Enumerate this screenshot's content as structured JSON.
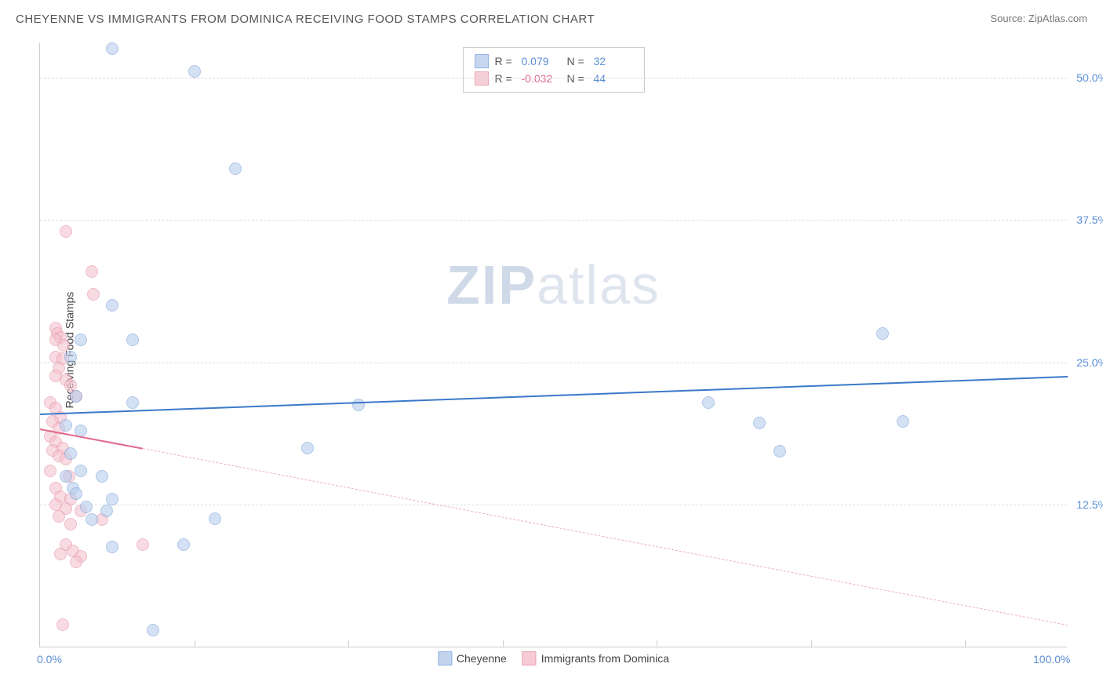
{
  "title": "CHEYENNE VS IMMIGRANTS FROM DOMINICA RECEIVING FOOD STAMPS CORRELATION CHART",
  "source_label": "Source:",
  "source_name": "ZipAtlas.com",
  "y_axis_title": "Receiving Food Stamps",
  "watermark_bold": "ZIP",
  "watermark_rest": "atlas",
  "chart": {
    "type": "scatter",
    "background_color": "#ffffff",
    "grid_color": "#dddddd",
    "axis_color": "#cccccc",
    "xlim": [
      0,
      100
    ],
    "ylim": [
      0,
      53
    ],
    "x_ticks": [
      0,
      100
    ],
    "x_tick_labels": [
      "0.0%",
      "100.0%"
    ],
    "x_minor_ticks": [
      15,
      30,
      45,
      60,
      75,
      90
    ],
    "y_ticks": [
      12.5,
      25,
      37.5,
      50
    ],
    "y_tick_labels": [
      "12.5%",
      "25.0%",
      "37.5%",
      "50.0%"
    ],
    "marker_radius": 8,
    "marker_stroke_width": 1.5,
    "series": [
      {
        "name": "Cheyenne",
        "label": "Cheyenne",
        "fill_color": "#b8cdec",
        "stroke_color": "#7aa3db",
        "fill_opacity": 0.6,
        "R_label": "R =",
        "R_value": "0.079",
        "R_color": "#5b8fd6",
        "N_label": "N =",
        "N_value": "32",
        "N_color": "#5b8fd6",
        "trend": {
          "x1": 0,
          "y1": 20.5,
          "x2": 100,
          "y2": 23.8,
          "color": "#3b78c9",
          "width": 2.5,
          "dash": "solid"
        },
        "points": [
          [
            7,
            52.5
          ],
          [
            15,
            50.5
          ],
          [
            19,
            42
          ],
          [
            7,
            30
          ],
          [
            4,
            27
          ],
          [
            9,
            27
          ],
          [
            3,
            25.5
          ],
          [
            3.2,
            14
          ],
          [
            3.5,
            22
          ],
          [
            9,
            21.5
          ],
          [
            31,
            21.3
          ],
          [
            65,
            21.5
          ],
          [
            70,
            19.7
          ],
          [
            84,
            19.8
          ],
          [
            72,
            17.2
          ],
          [
            26,
            17.5
          ],
          [
            4,
            15.5
          ],
          [
            6,
            15
          ],
          [
            3.5,
            13.5
          ],
          [
            7,
            13
          ],
          [
            6.5,
            12
          ],
          [
            17,
            11.3
          ],
          [
            7,
            8.8
          ],
          [
            14,
            9
          ],
          [
            11,
            1.5
          ],
          [
            82,
            27.5
          ],
          [
            2.5,
            19.5
          ],
          [
            4,
            19
          ],
          [
            4.5,
            12.3
          ],
          [
            5,
            11.2
          ],
          [
            2.5,
            15
          ],
          [
            3,
            17
          ]
        ]
      },
      {
        "name": "Immigrants from Dominica",
        "label": "Immigrants from Dominica",
        "fill_color": "#f5c2cf",
        "stroke_color": "#e392a8",
        "fill_opacity": 0.6,
        "R_label": "R =",
        "R_value": "-0.032",
        "R_color": "#e06a8a",
        "N_label": "N =",
        "N_value": "44",
        "N_color": "#5b8fd6",
        "trend_solid": {
          "x1": 0,
          "y1": 19.2,
          "x2": 10,
          "y2": 17.5,
          "color": "#e06a8a",
          "width": 2,
          "dash": "solid"
        },
        "trend_dashed": {
          "x1": 10,
          "y1": 17.5,
          "x2": 100,
          "y2": 2,
          "color": "#f0aebd",
          "width": 1,
          "dash": "dashed"
        },
        "points": [
          [
            2.5,
            36.5
          ],
          [
            5,
            33
          ],
          [
            5.2,
            31
          ],
          [
            1.5,
            28
          ],
          [
            1.7,
            27.5
          ],
          [
            2,
            27.2
          ],
          [
            1.5,
            25.5
          ],
          [
            2.2,
            25.3
          ],
          [
            1.8,
            24.5
          ],
          [
            1.5,
            23.8
          ],
          [
            2.5,
            23.5
          ],
          [
            3,
            23
          ],
          [
            1,
            21.5
          ],
          [
            1.5,
            21
          ],
          [
            2,
            20.2
          ],
          [
            1.2,
            19.8
          ],
          [
            1.8,
            19.2
          ],
          [
            1,
            18.5
          ],
          [
            1.5,
            18
          ],
          [
            2.2,
            17.5
          ],
          [
            1.2,
            17.3
          ],
          [
            1.8,
            16.8
          ],
          [
            2.5,
            16.5
          ],
          [
            1,
            15.5
          ],
          [
            2.8,
            15
          ],
          [
            1.5,
            14
          ],
          [
            2,
            13.2
          ],
          [
            3,
            13
          ],
          [
            1.5,
            12.5
          ],
          [
            2.5,
            12.2
          ],
          [
            4,
            12
          ],
          [
            1.8,
            11.5
          ],
          [
            3,
            10.8
          ],
          [
            6,
            11.2
          ],
          [
            10,
            9
          ],
          [
            2.5,
            9
          ],
          [
            2,
            8.2
          ],
          [
            3.2,
            8.5
          ],
          [
            4,
            8
          ],
          [
            3.5,
            7.5
          ],
          [
            2.2,
            2
          ],
          [
            1.5,
            27
          ],
          [
            2.3,
            26.5
          ],
          [
            3.5,
            22
          ]
        ]
      }
    ]
  }
}
